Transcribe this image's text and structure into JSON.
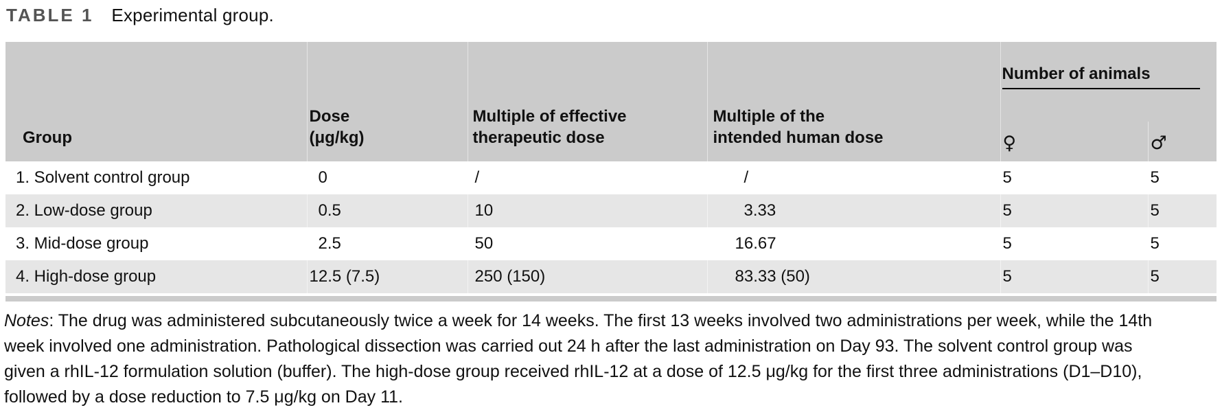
{
  "caption": {
    "label": "TABLE 1",
    "text": "Experimental group."
  },
  "table": {
    "columns": {
      "group": "Group",
      "dose": "Dose\n(μg/kg)",
      "mult_effective": "Multiple of effective\ntherapeutic dose",
      "mult_human": "Multiple of the\nintended human dose",
      "animals_group": "Number of animals",
      "female_symbol": "♀",
      "male_symbol": "♂"
    },
    "rows": [
      {
        "group": "1. Solvent control group",
        "dose": "0",
        "mult_effective": "/",
        "mult_human": "/",
        "female": "5",
        "male": "5"
      },
      {
        "group": "2. Low-dose group",
        "dose": "0.5",
        "mult_effective": "10",
        "mult_human": "3.33",
        "female": "5",
        "male": "5"
      },
      {
        "group": "3. Mid-dose group",
        "dose": "2.5",
        "mult_effective": "50",
        "mult_human": "16.67",
        "female": "5",
        "male": "5"
      },
      {
        "group": "4. High-dose group",
        "dose": "12.5 (7.5)",
        "mult_effective": "250 (150)",
        "mult_human": "83.33 (50)",
        "female": "5",
        "male": "5"
      }
    ]
  },
  "notes": {
    "label": "Notes",
    "lines": [
      ": The drug was administered subcutaneously twice a week for 14 weeks. The first 13 weeks involved two administrations per week, while the 14th",
      "week involved one administration. Pathological dissection was carried out 24 h after the last administration on Day 93. The solvent control group was",
      "given a rhIL-12 formulation solution (buffer). The high-dose group received rhIL-12 at a dose of 12.5 μg/kg for the first three administrations (D1–D10),",
      "followed by a dose reduction to 7.5 μg/kg on Day 11."
    ]
  },
  "colors": {
    "header_bg": "#cbcbcb",
    "row_alt_bg": "#e6e6e6",
    "title_label": "#545454",
    "rule": "#000000"
  }
}
